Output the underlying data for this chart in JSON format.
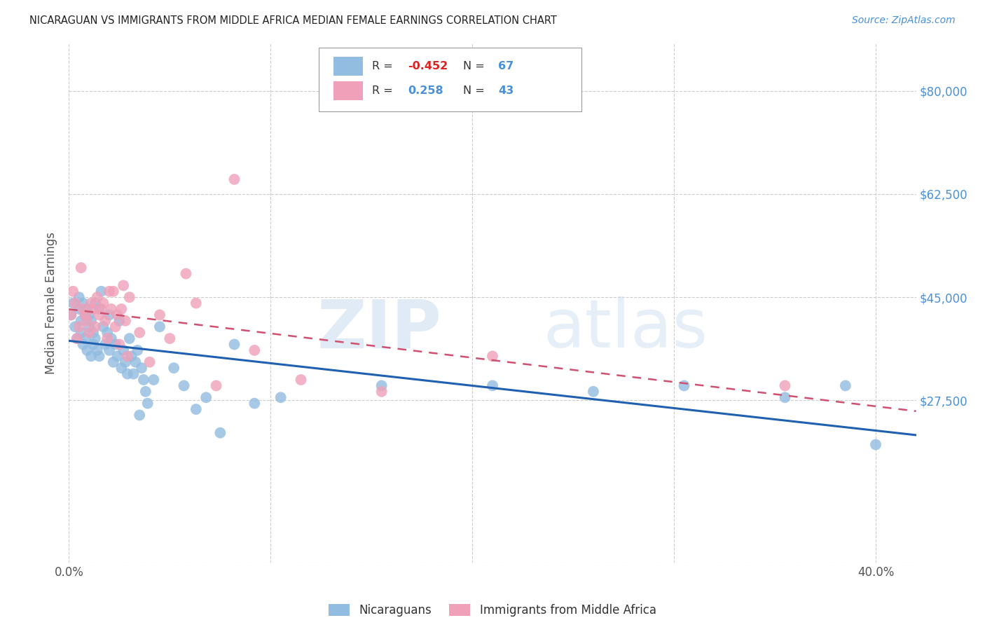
{
  "title": "NICARAGUAN VS IMMIGRANTS FROM MIDDLE AFRICA MEDIAN FEMALE EARNINGS CORRELATION CHART",
  "source": "Source: ZipAtlas.com",
  "ylabel": "Median Female Earnings",
  "xlim": [
    0.0,
    0.42
  ],
  "ylim": [
    0,
    88000
  ],
  "ytick_positions": [
    0,
    27500,
    45000,
    62500,
    80000
  ],
  "ytick_labels": [
    "",
    "$27,500",
    "$45,000",
    "$62,500",
    "$80,000"
  ],
  "xtick_positions": [
    0.0,
    0.1,
    0.2,
    0.3,
    0.4
  ],
  "xtick_labels": [
    "0.0%",
    "",
    "",
    "",
    "40.0%"
  ],
  "blue_R": -0.452,
  "blue_N": 67,
  "pink_R": 0.258,
  "pink_N": 43,
  "blue_color": "#92bce0",
  "pink_color": "#f0a0b8",
  "blue_line_color": "#2060b0",
  "pink_line_color": "#d05070",
  "legend_label_blue": "Nicaraguans",
  "legend_label_pink": "Immigrants from Middle Africa",
  "blue_scatter_x": [
    0.001,
    0.002,
    0.003,
    0.004,
    0.005,
    0.005,
    0.006,
    0.006,
    0.007,
    0.007,
    0.008,
    0.008,
    0.009,
    0.009,
    0.01,
    0.01,
    0.011,
    0.011,
    0.012,
    0.012,
    0.013,
    0.013,
    0.014,
    0.015,
    0.015,
    0.016,
    0.017,
    0.018,
    0.019,
    0.02,
    0.02,
    0.021,
    0.022,
    0.023,
    0.024,
    0.025,
    0.026,
    0.027,
    0.028,
    0.029,
    0.03,
    0.031,
    0.032,
    0.033,
    0.034,
    0.035,
    0.036,
    0.037,
    0.038,
    0.039,
    0.042,
    0.045,
    0.052,
    0.057,
    0.063,
    0.068,
    0.075,
    0.082,
    0.092,
    0.105,
    0.155,
    0.21,
    0.26,
    0.305,
    0.355,
    0.385,
    0.4
  ],
  "blue_scatter_y": [
    42000,
    44000,
    40000,
    38000,
    45000,
    43000,
    41000,
    39000,
    44000,
    37000,
    42000,
    38000,
    43000,
    36000,
    40000,
    42000,
    35000,
    41000,
    39000,
    37000,
    44000,
    38000,
    36000,
    43000,
    35000,
    46000,
    40000,
    37000,
    39000,
    42000,
    36000,
    38000,
    34000,
    37000,
    35000,
    41000,
    33000,
    36000,
    34000,
    32000,
    38000,
    35000,
    32000,
    34000,
    36000,
    25000,
    33000,
    31000,
    29000,
    27000,
    31000,
    40000,
    33000,
    30000,
    26000,
    28000,
    22000,
    37000,
    27000,
    28000,
    30000,
    30000,
    29000,
    30000,
    28000,
    30000,
    20000
  ],
  "pink_scatter_x": [
    0.001,
    0.002,
    0.003,
    0.004,
    0.005,
    0.006,
    0.007,
    0.008,
    0.009,
    0.01,
    0.011,
    0.012,
    0.013,
    0.014,
    0.015,
    0.016,
    0.017,
    0.018,
    0.019,
    0.02,
    0.021,
    0.022,
    0.023,
    0.024,
    0.025,
    0.026,
    0.027,
    0.028,
    0.029,
    0.03,
    0.035,
    0.04,
    0.045,
    0.05,
    0.058,
    0.063,
    0.073,
    0.082,
    0.092,
    0.115,
    0.155,
    0.21,
    0.355
  ],
  "pink_scatter_y": [
    42000,
    46000,
    44000,
    38000,
    40000,
    50000,
    43000,
    42000,
    41000,
    39000,
    44000,
    43000,
    40000,
    45000,
    42000,
    43000,
    44000,
    41000,
    38000,
    46000,
    43000,
    46000,
    40000,
    42000,
    37000,
    43000,
    47000,
    41000,
    35000,
    45000,
    39000,
    34000,
    42000,
    38000,
    49000,
    44000,
    30000,
    65000,
    36000,
    31000,
    29000,
    35000,
    30000
  ]
}
